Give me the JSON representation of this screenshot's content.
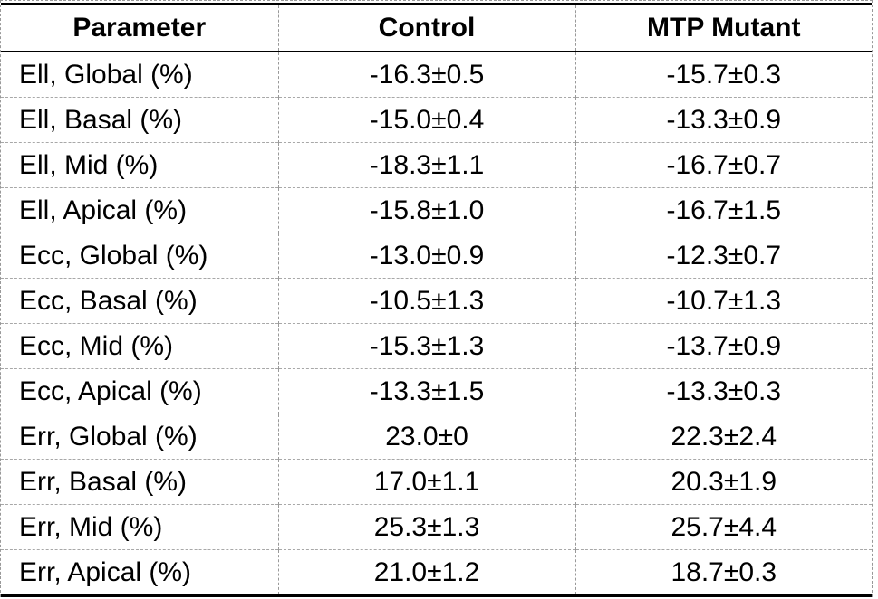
{
  "table": {
    "columns": [
      {
        "label": "Parameter"
      },
      {
        "label": "Control"
      },
      {
        "label": "MTP Mutant"
      }
    ],
    "rows": [
      [
        "Ell, Global (%)",
        "-16.3±0.5",
        "-15.7±0.3"
      ],
      [
        "Ell, Basal (%)",
        "-15.0±0.4",
        "-13.3±0.9"
      ],
      [
        "Ell, Mid (%)",
        "-18.3±1.1",
        "-16.7±0.7"
      ],
      [
        "Ell, Apical (%)",
        "-15.8±1.0",
        "-16.7±1.5"
      ],
      [
        "Ecc, Global (%)",
        "-13.0±0.9",
        "-12.3±0.7"
      ],
      [
        "Ecc, Basal (%)",
        "-10.5±1.3",
        "-10.7±1.3"
      ],
      [
        "Ecc, Mid (%)",
        "-15.3±1.3",
        "-13.7±0.9"
      ],
      [
        "Ecc, Apical (%)",
        "-13.3±1.5",
        "-13.3±0.3"
      ],
      [
        "Err, Global (%)",
        "23.0±0",
        "22.3±2.4"
      ],
      [
        "Err, Basal (%)",
        "17.0±1.1",
        "20.3±1.9"
      ],
      [
        "Err, Mid (%)",
        "25.3±1.3",
        "25.7±4.4"
      ],
      [
        "Err, Apical (%)",
        "21.0±1.2",
        "18.7±0.3"
      ]
    ]
  },
  "colors": {
    "text": "#000000",
    "solid_rule": "#000000",
    "dashed_grid": "#999999",
    "background": "#ffffff"
  },
  "chart_data": {
    "type": "table",
    "title": "",
    "columns": [
      "Parameter",
      "Control",
      "MTP Mutant"
    ],
    "rows": [
      [
        "Ell, Global (%)",
        "-16.3±0.5",
        "-15.7±0.3"
      ],
      [
        "Ell, Basal (%)",
        "-15.0±0.4",
        "-13.3±0.9"
      ],
      [
        "Ell, Mid (%)",
        "-18.3±1.1",
        "-16.7±0.7"
      ],
      [
        "Ell, Apical (%)",
        "-15.8±1.0",
        "-16.7±1.5"
      ],
      [
        "Ecc, Global (%)",
        "-13.0±0.9",
        "-12.3±0.7"
      ],
      [
        "Ecc, Basal (%)",
        "-10.5±1.3",
        "-10.7±1.3"
      ],
      [
        "Ecc, Mid (%)",
        "-15.3±1.3",
        "-13.7±0.9"
      ],
      [
        "Ecc, Apical (%)",
        "-13.3±1.5",
        "-13.3±0.3"
      ],
      [
        "Err, Global (%)",
        "23.0±0",
        "22.3±2.4"
      ],
      [
        "Err, Basal (%)",
        "17.0±1.1",
        "20.3±1.9"
      ],
      [
        "Err, Mid (%)",
        "25.3±1.3",
        "25.7±4.4"
      ],
      [
        "Err, Apical (%)",
        "21.0±1.2",
        "18.7±0.3"
      ]
    ]
  }
}
